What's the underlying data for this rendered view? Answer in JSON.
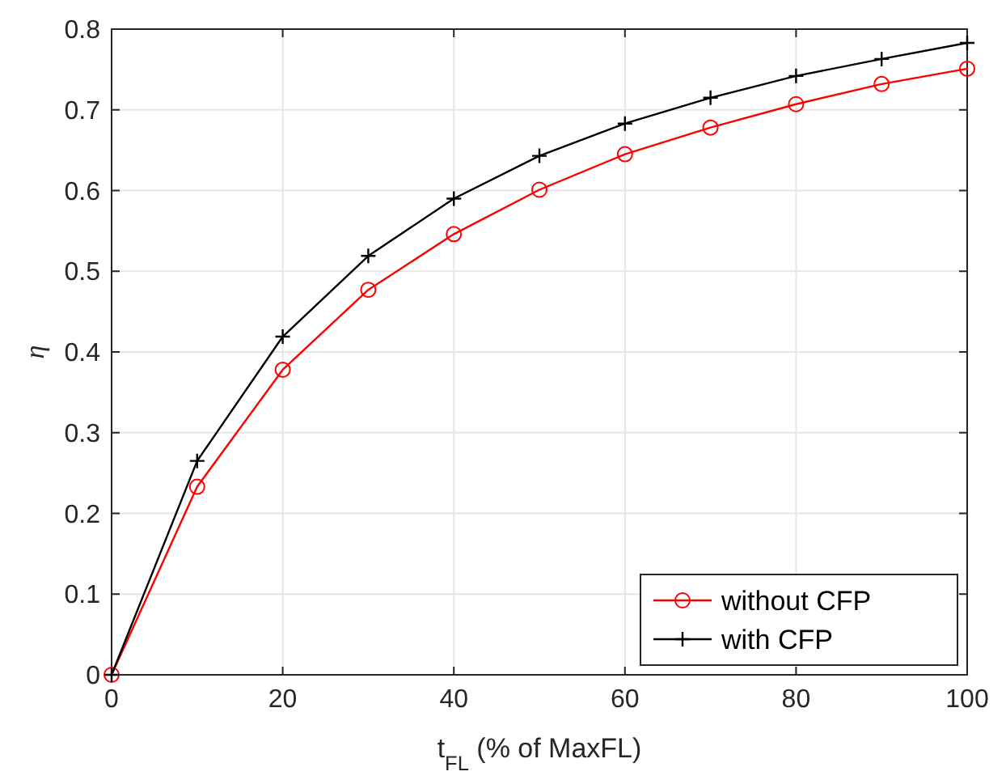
{
  "chart_data": {
    "type": "line",
    "xlabel": "t$_{FL}$ (% of MaxFL)",
    "ylabel": "η",
    "x": [
      0,
      10,
      20,
      30,
      40,
      50,
      60,
      70,
      80,
      90,
      100
    ],
    "series": [
      {
        "name": "without CFP",
        "color": "#ff0000",
        "marker": "circle",
        "values": [
          0,
          0.233,
          0.378,
          0.477,
          0.546,
          0.601,
          0.645,
          0.678,
          0.707,
          0.732,
          0.751
        ]
      },
      {
        "name": "with CFP",
        "color": "#000000",
        "marker": "cross",
        "values": [
          0,
          0.265,
          0.419,
          0.519,
          0.59,
          0.643,
          0.683,
          0.715,
          0.742,
          0.763,
          0.783
        ]
      }
    ],
    "xlim": [
      0,
      100
    ],
    "xticks": [
      0,
      20,
      40,
      60,
      80,
      100
    ],
    "ylim": [
      0,
      0.8
    ],
    "yticks": [
      0,
      0.1,
      0.2,
      0.3,
      0.4,
      0.5,
      0.6,
      0.7,
      0.8
    ],
    "grid": true,
    "legend": "bottom right",
    "line_style": "solid"
  }
}
